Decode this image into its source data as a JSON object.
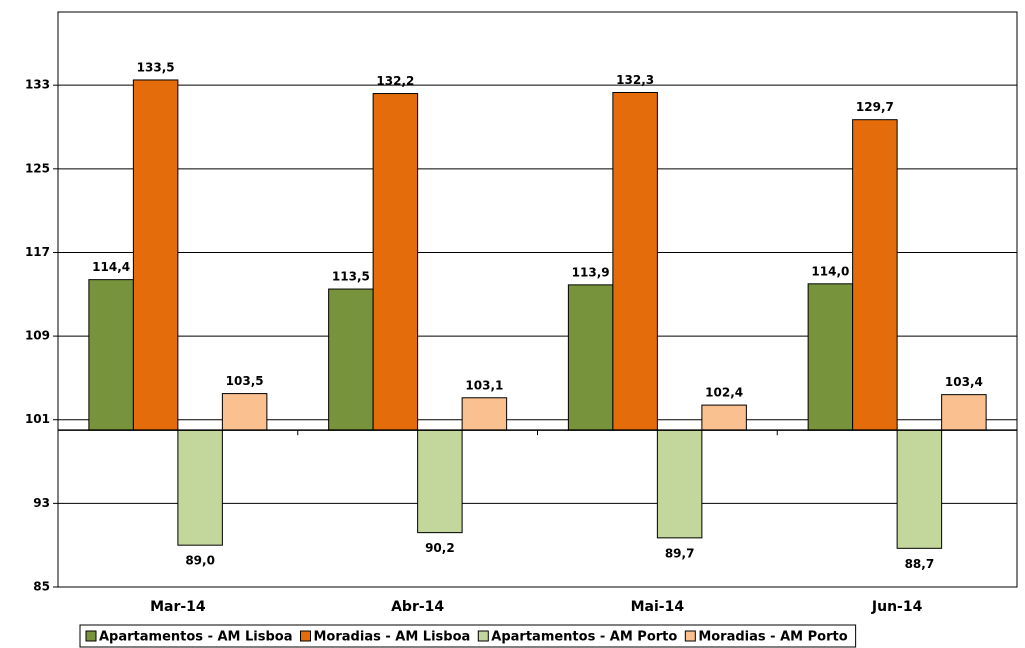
{
  "chart_data": {
    "type": "bar",
    "categories": [
      "Mar-14",
      "Abr-14",
      "Mai-14",
      "Jun-14"
    ],
    "series": [
      {
        "name": "Apartamentos - AM Lisboa",
        "color": "#77933c",
        "values": [
          114.4,
          113.5,
          113.9,
          114.0
        ],
        "value_labels": [
          "114,4",
          "113,5",
          "113,9",
          "114,0"
        ]
      },
      {
        "name": "Moradias - AM Lisboa",
        "color": "#e46c0a",
        "values": [
          133.5,
          132.2,
          132.3,
          129.7
        ],
        "value_labels": [
          "133,5",
          "132,2",
          "132,3",
          "129,7"
        ]
      },
      {
        "name": "Apartamentos - AM Porto",
        "color": "#c3d69b",
        "values": [
          89.0,
          90.2,
          89.7,
          88.7
        ],
        "value_labels": [
          "89,0",
          "90,2",
          "89,7",
          "88,7"
        ]
      },
      {
        "name": "Moradias - AM Porto",
        "color": "#fac090",
        "values": [
          103.5,
          103.1,
          102.4,
          103.4
        ],
        "value_labels": [
          "103,5",
          "103,1",
          "102,4",
          "103,4"
        ]
      }
    ],
    "ylim": [
      85,
      140
    ],
    "yticks": [
      85,
      93,
      101,
      109,
      117,
      125,
      133
    ],
    "x_axis_crosses": 100,
    "grid": true,
    "legend": "bottom"
  }
}
